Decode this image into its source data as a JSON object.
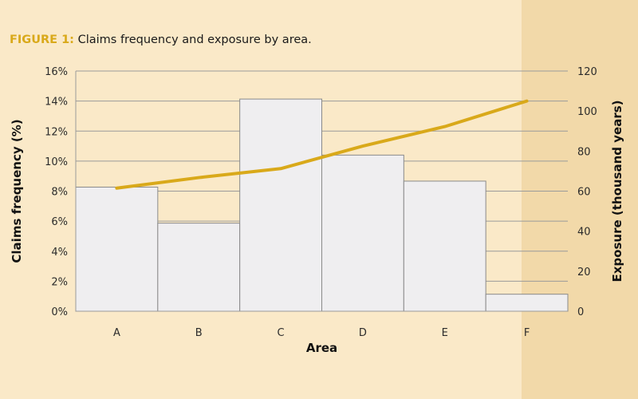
{
  "figure": {
    "label": "FIGURE 1:",
    "caption": "Claims frequency and exposure by area."
  },
  "colors": {
    "background": "#fae9c8",
    "side_band": "#f2d9a9",
    "bar_fill": "#efeef0",
    "bar_stroke": "#8a8a8a",
    "line": "#d9a91a",
    "label_accent": "#d9a91a",
    "grid": "#9a9a9a"
  },
  "chart_data": {
    "type": "bar",
    "title": "Claims frequency and exposure by area.",
    "xlabel": "Area",
    "ylabel": "Claims frequency (%)",
    "y2label": "Exposure (thousand years)",
    "categories": [
      "A",
      "B",
      "C",
      "D",
      "E",
      "F"
    ],
    "ylim": [
      0,
      16
    ],
    "y2lim": [
      0,
      120
    ],
    "yticks": [
      "0%",
      "2%",
      "4%",
      "6%",
      "8%",
      "10%",
      "12%",
      "14%",
      "16%"
    ],
    "y2ticks": [
      "0",
      "20",
      "40",
      "60",
      "80",
      "100",
      "120"
    ],
    "grid": true,
    "series": [
      {
        "type": "bar",
        "axis": "right",
        "values": [
          62,
          44,
          106,
          78,
          65,
          8.5
        ]
      },
      {
        "type": "line",
        "axis": "left",
        "values": [
          8.2,
          8.9,
          9.5,
          11.0,
          12.3,
          14.0
        ]
      }
    ]
  }
}
